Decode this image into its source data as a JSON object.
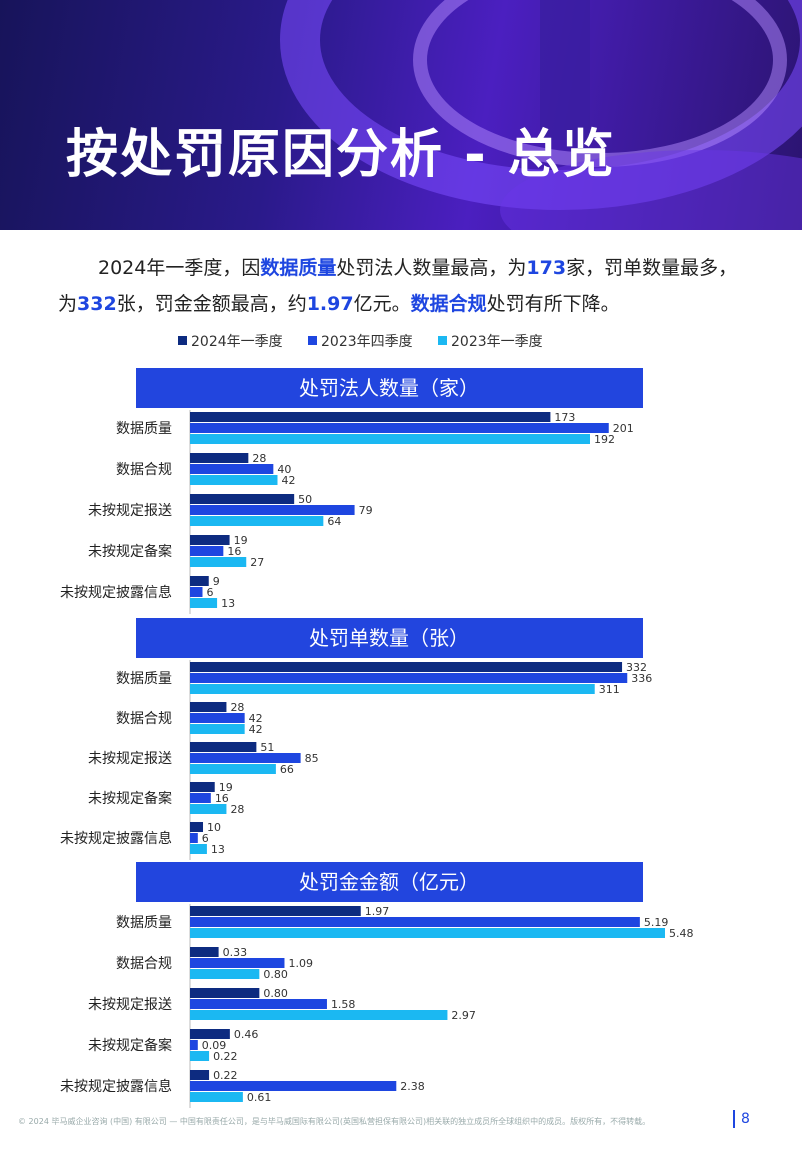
{
  "header": {
    "title": "按处罚原因分析 - 总览"
  },
  "intro": [
    {
      "text": "2024年一季度，因",
      "bold": false
    },
    {
      "text": "数据质量",
      "bold": true
    },
    {
      "text": "处罚法人数量最高，为",
      "bold": false
    },
    {
      "text": "173",
      "bold": true
    },
    {
      "text": "家，罚单数量最多，为",
      "bold": false
    },
    {
      "text": "332",
      "bold": true
    },
    {
      "text": "张，罚金金额最高，约",
      "bold": false
    },
    {
      "text": "1.97",
      "bold": true
    },
    {
      "text": "亿元。",
      "bold": false
    },
    {
      "text": "数据合规",
      "bold": true
    },
    {
      "text": "处罚有所下降。",
      "bold": false
    }
  ],
  "chart_data": [
    {
      "type": "bar",
      "orientation": "horizontal",
      "title": "处罚法人数量（家）",
      "categories": [
        "数据质量",
        "数据合规",
        "未按规定报送",
        "未按规定备案",
        "未按规定披露信息"
      ],
      "xlim": [
        0,
        228
      ],
      "series": [
        {
          "name": "2024年一季度",
          "color": "#0d2b80",
          "values": [
            173,
            28,
            50,
            19,
            9
          ]
        },
        {
          "name": "2023年四季度",
          "color": "#1e46e0",
          "values": [
            201,
            40,
            79,
            16,
            6
          ]
        },
        {
          "name": "2023年一季度",
          "color": "#1bb8f2",
          "values": [
            192,
            42,
            64,
            27,
            13
          ]
        }
      ]
    },
    {
      "type": "bar",
      "orientation": "horizontal",
      "title": "处罚单数量（张）",
      "categories": [
        "数据质量",
        "数据合规",
        "未按规定报送",
        "未按规定备案",
        "未按规定披露信息"
      ],
      "xlim": [
        0,
        365
      ],
      "series": [
        {
          "color": "#0d2b80",
          "values": [
            332,
            28,
            51,
            19,
            10
          ]
        },
        {
          "color": "#1e46e0",
          "values": [
            336,
            42,
            85,
            16,
            6
          ]
        },
        {
          "color": "#1bb8f2",
          "values": [
            311,
            42,
            66,
            28,
            13
          ]
        }
      ]
    },
    {
      "type": "bar",
      "orientation": "horizontal",
      "title": "处罚金金额（亿元）",
      "categories": [
        "数据质量",
        "数据合规",
        "未按规定报送",
        "未按规定备案",
        "未按规定披露信息"
      ],
      "xlim": [
        0,
        5.48
      ],
      "series": [
        {
          "color": "#0d2b80",
          "values": [
            1.97,
            0.33,
            0.8,
            0.46,
            0.22
          ],
          "value_labels": [
            "1.97",
            "0.33",
            "0.80",
            "0.46",
            "0.22"
          ]
        },
        {
          "color": "#1e46e0",
          "values": [
            5.19,
            1.09,
            1.58,
            0.09,
            2.38
          ],
          "value_labels": [
            "5.19",
            "1.09",
            "1.58",
            "0.09",
            "2.38"
          ]
        },
        {
          "color": "#1bb8f2",
          "values": [
            5.48,
            0.8,
            2.97,
            0.22,
            0.61
          ],
          "value_labels": [
            "5.48",
            "0.80",
            "2.97",
            "0.22",
            "0.61"
          ]
        }
      ]
    }
  ],
  "footer": {
    "text": "© 2024 毕马威企业咨询 (中国) 有限公司 — 中国有限责任公司，是与毕马威国际有限公司(英国私营担保有限公司)相关联的独立成员所全球组织中的成员。版权所有，不得转载。",
    "page": "8"
  }
}
